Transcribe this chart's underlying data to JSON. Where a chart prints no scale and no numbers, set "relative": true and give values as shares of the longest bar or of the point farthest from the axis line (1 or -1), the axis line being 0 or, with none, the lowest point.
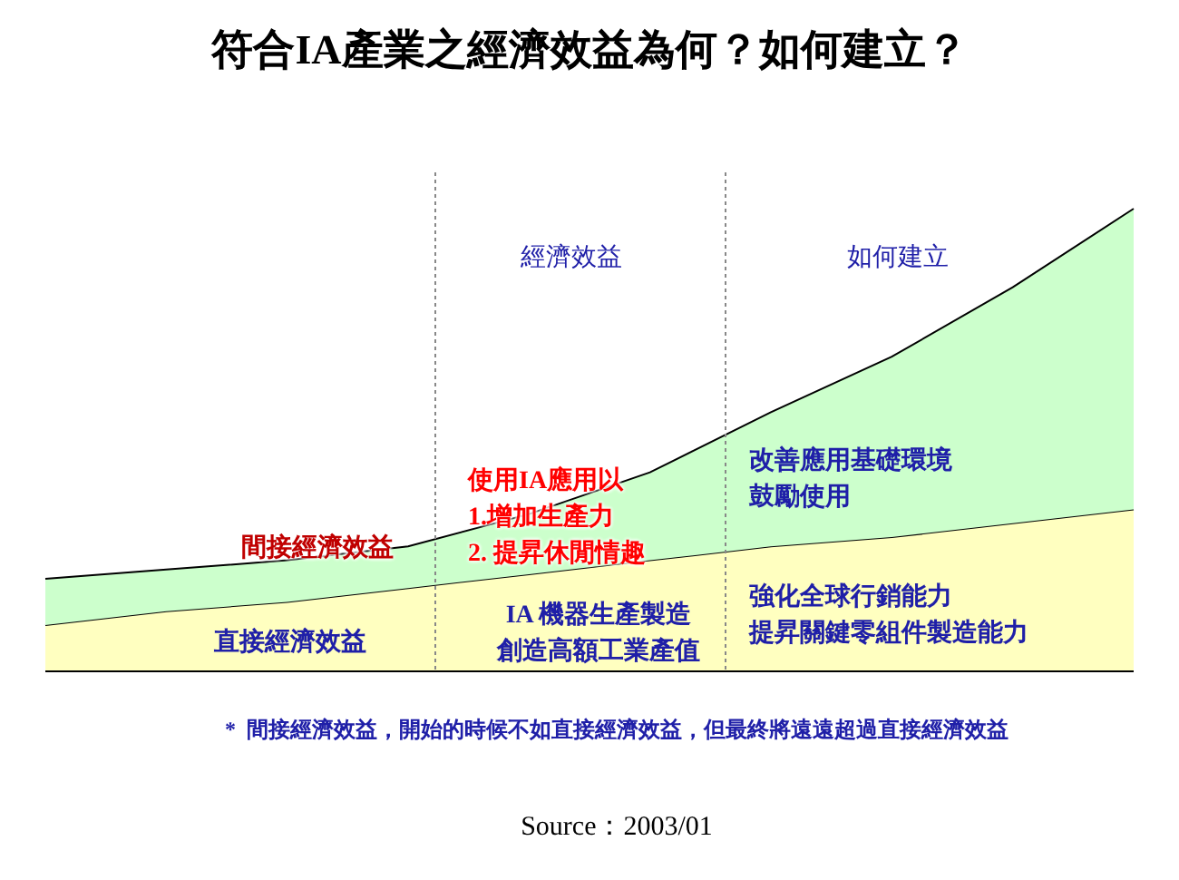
{
  "chart_data": {
    "type": "area",
    "title": "符合IA產業之經濟效益為何？如何建立？",
    "relative": true,
    "stacked": true,
    "legend": false,
    "categories": [
      null,
      null,
      null,
      null,
      null,
      null,
      null,
      null,
      null,
      null
    ],
    "series": [
      {
        "name": "直接經濟效益",
        "color": "#ffffc0",
        "values": [
          0.1,
          0.13,
          0.15,
          0.18,
          0.21,
          0.24,
          0.27,
          0.29,
          0.32,
          0.35
        ]
      },
      {
        "name": "間接經濟效益",
        "color": "#ccffcc",
        "values": [
          0.1,
          0.09,
          0.09,
          0.09,
          0.13,
          0.19,
          0.29,
          0.39,
          0.51,
          0.65
        ]
      }
    ],
    "annotations": [
      "經濟效益",
      "如何建立",
      "使用IA應用以",
      "1.增加生產力",
      "2. 提昇休閒情趣",
      "IA 機器生產製造",
      "創造高額工業產值",
      "改善應用基礎環境",
      "鼓勵使用",
      "強化全球行銷能力",
      "提昇關鍵零組件製造能力",
      "*  間接經濟效益，開始的時候不如直接經濟效益，但最終將遠遠超過直接經濟效益",
      "Source：2003/01"
    ]
  }
}
